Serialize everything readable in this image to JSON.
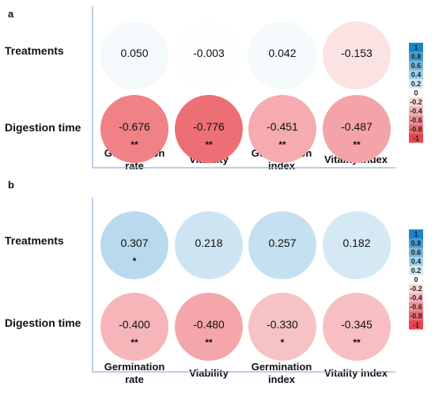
{
  "chart_data": [
    {
      "type": "heatmap",
      "panel": "a",
      "rows": [
        "Treatments",
        "Digestion time"
      ],
      "columns": [
        "Germination rate",
        "Viability",
        "Germination index",
        "Vitality index"
      ],
      "values": [
        [
          0.05,
          -0.003,
          0.042,
          -0.153
        ],
        [
          -0.676,
          -0.776,
          -0.451,
          -0.487
        ]
      ],
      "labels": [
        [
          "0.050",
          "-0.003",
          "0.042",
          "-0.153"
        ],
        [
          "-0.676",
          "-0.776",
          "-0.451",
          "-0.487"
        ]
      ],
      "significance": [
        [
          "",
          "",
          "",
          ""
        ],
        [
          "**",
          "**",
          "**",
          "**"
        ]
      ],
      "colorbar": {
        "range": [
          -1,
          1
        ],
        "ticks": [
          "1",
          "0.8",
          "0.6",
          "0.4",
          "0.2",
          "0",
          "-0.2",
          "-0.4",
          "-0.6",
          "-0.8",
          "-1"
        ],
        "positive_color": "#1a86c8",
        "negative_color": "#e8454d"
      }
    },
    {
      "type": "heatmap",
      "panel": "b",
      "rows": [
        "Treatments",
        "Digestion time"
      ],
      "columns": [
        "Germination rate",
        "Viability",
        "Germination index",
        "Vitality index"
      ],
      "values": [
        [
          0.307,
          0.218,
          0.257,
          0.182
        ],
        [
          -0.4,
          -0.48,
          -0.33,
          -0.345
        ]
      ],
      "labels": [
        [
          "0.307",
          "0.218",
          "0.257",
          "0.182"
        ],
        [
          "-0.400",
          "-0.480",
          "-0.330",
          "-0.345"
        ]
      ],
      "significance": [
        [
          "*",
          "",
          "",
          ""
        ],
        [
          "**",
          "**",
          "*",
          "**"
        ]
      ],
      "colorbar": {
        "range": [
          -1,
          1
        ],
        "ticks": [
          "1",
          "0.8",
          "0.6",
          "0.4",
          "0.2",
          "0",
          "-0.2",
          "-0.4",
          "-0.6",
          "-0.8",
          "-1"
        ],
        "positive_color": "#1a86c8",
        "negative_color": "#e8454d"
      }
    }
  ],
  "panels": {
    "a": {
      "letter": "a",
      "row_labels": [
        "Treatments",
        "Digestion time"
      ],
      "col_labels": [
        [
          "Germination",
          "rate"
        ],
        [
          "Viability"
        ],
        [
          "Germination",
          "index"
        ],
        [
          "Vitality index"
        ]
      ]
    },
    "b": {
      "letter": "b",
      "row_labels": [
        "Treatments",
        "Digestion time"
      ],
      "col_labels": [
        [
          "Germination",
          "rate"
        ],
        [
          "Viability"
        ],
        [
          "Germination",
          "index"
        ],
        [
          "Vitality index"
        ]
      ]
    }
  }
}
